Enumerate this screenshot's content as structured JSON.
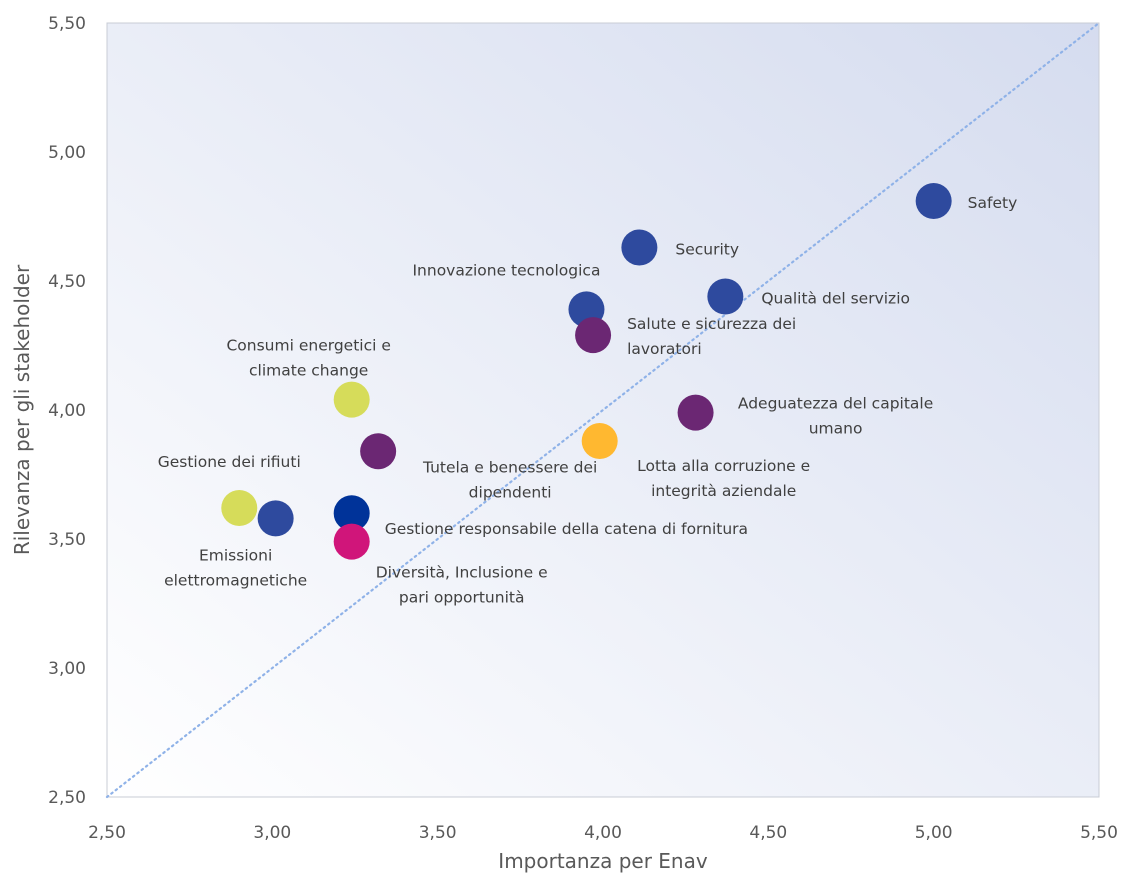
{
  "chart_data": {
    "type": "scatter",
    "title": "",
    "xlabel": "Importanza per Enav",
    "ylabel": "Rilevanza per gli stakeholder",
    "xlim": [
      2.5,
      5.5
    ],
    "ylim": [
      2.5,
      5.5
    ],
    "xticks": [
      "2,50",
      "3,00",
      "3,50",
      "4,00",
      "4,50",
      "5,00",
      "5,50"
    ],
    "yticks": [
      "2,50",
      "3,00",
      "3,50",
      "4,00",
      "4,50",
      "5,00",
      "5,50"
    ],
    "grid": false,
    "diagonal_reference_line": true,
    "colors": {
      "blue": "#2E4A9E",
      "navy": "#003399",
      "purple": "#6B2773",
      "lime": "#D6DC5A",
      "orange": "#FFB830",
      "magenta": "#D0157A",
      "diagonal": "#8FB2E8"
    },
    "points": [
      {
        "label": [
          "Safety"
        ],
        "x": 5.0,
        "y": 4.81,
        "color": "#2E4A9E"
      },
      {
        "label": [
          "Security"
        ],
        "x": 4.11,
        "y": 4.63,
        "color": "#2E4A9E"
      },
      {
        "label": [
          "Innovazione tecnologica"
        ],
        "x": 3.95,
        "y": 4.39,
        "color": "#2E4A9E"
      },
      {
        "label": [
          "Qualità del servizio"
        ],
        "x": 4.37,
        "y": 4.44,
        "color": "#2E4A9E"
      },
      {
        "label": [
          "Salute e sicurezza dei",
          "lavoratori"
        ],
        "x": 3.97,
        "y": 4.29,
        "color": "#6B2773"
      },
      {
        "label": [
          "Consumi energetici e",
          "climate change"
        ],
        "x": 3.24,
        "y": 4.04,
        "color": "#D6DC5A"
      },
      {
        "label": [
          "Adeguatezza del capitale",
          "umano"
        ],
        "x": 4.28,
        "y": 3.99,
        "color": "#6B2773"
      },
      {
        "label": [
          "Tutela e benessere dei",
          "dipendenti"
        ],
        "x": 3.32,
        "y": 3.84,
        "color": "#6B2773"
      },
      {
        "label": [
          "Lotta alla corruzione e",
          "integrità aziendale"
        ],
        "x": 3.99,
        "y": 3.88,
        "color": "#FFB830"
      },
      {
        "label": [
          "Gestione dei rifiuti"
        ],
        "x": 2.9,
        "y": 3.62,
        "color": "#D6DC5A"
      },
      {
        "label": [
          "Emissioni",
          "elettromagnetiche"
        ],
        "x": 3.01,
        "y": 3.58,
        "color": "#2E4A9E"
      },
      {
        "label": [
          "Gestione responsabile della catena di fornitura"
        ],
        "x": 3.24,
        "y": 3.6,
        "color": "#003399"
      },
      {
        "label": [
          "Diversità, Inclusione e",
          "pari opportunità"
        ],
        "x": 3.24,
        "y": 3.49,
        "color": "#D0157A"
      }
    ]
  }
}
